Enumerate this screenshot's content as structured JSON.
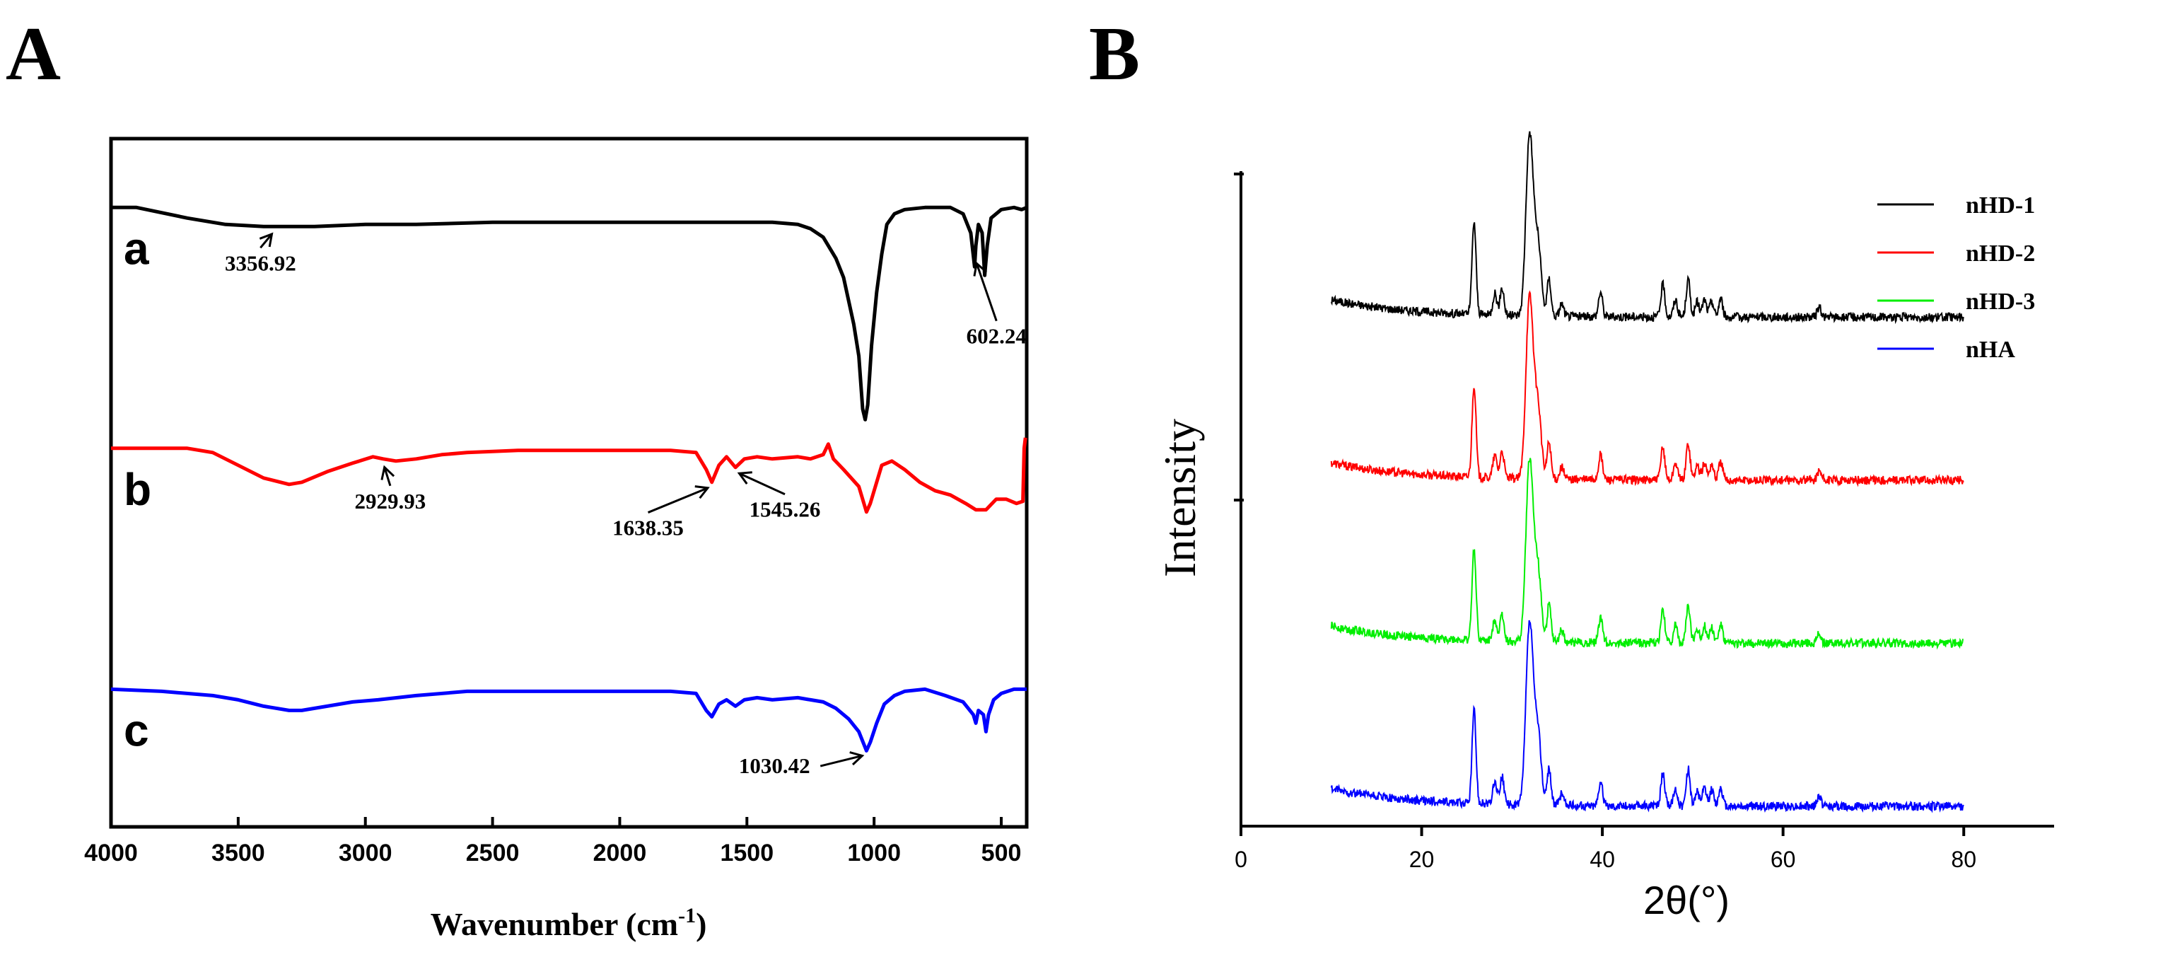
{
  "figure": {
    "panel_a_letter": "A",
    "panel_b_letter": "B"
  },
  "chart_data": [
    {
      "type": "line",
      "panel": "A",
      "title": "",
      "xlabel": "Wavenumber (cm",
      "xlabel_superscript": "-1",
      "xlabel_close": ")",
      "ylabel": "",
      "xlim": [
        4000,
        400
      ],
      "xticks": [
        4000,
        3500,
        3000,
        2500,
        2000,
        1500,
        1000,
        500
      ],
      "series": [
        {
          "name": "a",
          "color": "#000000",
          "offset": 0.9,
          "points": [
            [
              4000,
              0.0
            ],
            [
              3900,
              0.0
            ],
            [
              3700,
              -0.05
            ],
            [
              3550,
              -0.08
            ],
            [
              3400,
              -0.09
            ],
            [
              3356,
              -0.09
            ],
            [
              3200,
              -0.09
            ],
            [
              3000,
              -0.08
            ],
            [
              2800,
              -0.08
            ],
            [
              2500,
              -0.07
            ],
            [
              2200,
              -0.07
            ],
            [
              2000,
              -0.07
            ],
            [
              1800,
              -0.07
            ],
            [
              1600,
              -0.07
            ],
            [
              1400,
              -0.07
            ],
            [
              1300,
              -0.08
            ],
            [
              1250,
              -0.1
            ],
            [
              1200,
              -0.14
            ],
            [
              1150,
              -0.24
            ],
            [
              1120,
              -0.33
            ],
            [
              1100,
              -0.44
            ],
            [
              1080,
              -0.55
            ],
            [
              1060,
              -0.7
            ],
            [
              1045,
              -0.95
            ],
            [
              1035,
              -1.0
            ],
            [
              1025,
              -0.93
            ],
            [
              1010,
              -0.65
            ],
            [
              990,
              -0.4
            ],
            [
              970,
              -0.22
            ],
            [
              950,
              -0.08
            ],
            [
              920,
              -0.03
            ],
            [
              880,
              -0.01
            ],
            [
              800,
              0.0
            ],
            [
              700,
              0.0
            ],
            [
              650,
              -0.03
            ],
            [
              620,
              -0.12
            ],
            [
              605,
              -0.28
            ],
            [
              600,
              -0.18
            ],
            [
              590,
              -0.08
            ],
            [
              575,
              -0.12
            ],
            [
              565,
              -0.32
            ],
            [
              555,
              -0.18
            ],
            [
              540,
              -0.05
            ],
            [
              500,
              -0.01
            ],
            [
              450,
              0.0
            ],
            [
              420,
              -0.01
            ],
            [
              400,
              0.0
            ]
          ],
          "annotations": [
            {
              "label": "3356.92",
              "x": 3356.92
            },
            {
              "label": "602.24",
              "x": 602.24
            }
          ]
        },
        {
          "name": "b",
          "color": "#ff0000",
          "offset": 0.55,
          "points": [
            [
              4000,
              0.0
            ],
            [
              3800,
              0.0
            ],
            [
              3700,
              0.0
            ],
            [
              3600,
              -0.02
            ],
            [
              3500,
              -0.08
            ],
            [
              3400,
              -0.14
            ],
            [
              3300,
              -0.17
            ],
            [
              3250,
              -0.16
            ],
            [
              3150,
              -0.11
            ],
            [
              3050,
              -0.07
            ],
            [
              2970,
              -0.04
            ],
            [
              2930,
              -0.05
            ],
            [
              2880,
              -0.06
            ],
            [
              2800,
              -0.05
            ],
            [
              2700,
              -0.03
            ],
            [
              2600,
              -0.02
            ],
            [
              2400,
              -0.01
            ],
            [
              2200,
              -0.01
            ],
            [
              2000,
              -0.01
            ],
            [
              1800,
              -0.01
            ],
            [
              1700,
              -0.02
            ],
            [
              1660,
              -0.1
            ],
            [
              1638,
              -0.16
            ],
            [
              1610,
              -0.08
            ],
            [
              1580,
              -0.04
            ],
            [
              1545,
              -0.09
            ],
            [
              1510,
              -0.05
            ],
            [
              1460,
              -0.04
            ],
            [
              1400,
              -0.05
            ],
            [
              1300,
              -0.04
            ],
            [
              1250,
              -0.05
            ],
            [
              1200,
              -0.03
            ],
            [
              1180,
              0.02
            ],
            [
              1160,
              -0.05
            ],
            [
              1120,
              -0.1
            ],
            [
              1090,
              -0.14
            ],
            [
              1060,
              -0.18
            ],
            [
              1040,
              -0.26
            ],
            [
              1030,
              -0.3
            ],
            [
              1015,
              -0.26
            ],
            [
              995,
              -0.18
            ],
            [
              970,
              -0.08
            ],
            [
              930,
              -0.06
            ],
            [
              880,
              -0.1
            ],
            [
              820,
              -0.16
            ],
            [
              760,
              -0.2
            ],
            [
              700,
              -0.22
            ],
            [
              640,
              -0.26
            ],
            [
              600,
              -0.29
            ],
            [
              560,
              -0.29
            ],
            [
              520,
              -0.24
            ],
            [
              480,
              -0.24
            ],
            [
              440,
              -0.26
            ],
            [
              415,
              -0.25
            ],
            [
              410,
              0.0
            ],
            [
              405,
              0.05
            ]
          ],
          "annotations": [
            {
              "label": "2929.93",
              "x": 2929.93
            },
            {
              "label": "1638.35",
              "x": 1638.35
            },
            {
              "label": "1545.26",
              "x": 1545.26
            }
          ]
        },
        {
          "name": "c",
          "color": "#0000ff",
          "offset": 0.2,
          "points": [
            [
              4000,
              0.0
            ],
            [
              3800,
              -0.01
            ],
            [
              3600,
              -0.03
            ],
            [
              3500,
              -0.05
            ],
            [
              3400,
              -0.08
            ],
            [
              3300,
              -0.1
            ],
            [
              3250,
              -0.1
            ],
            [
              3150,
              -0.08
            ],
            [
              3050,
              -0.06
            ],
            [
              2950,
              -0.05
            ],
            [
              2800,
              -0.03
            ],
            [
              2600,
              -0.01
            ],
            [
              2400,
              -0.01
            ],
            [
              2200,
              -0.01
            ],
            [
              2000,
              -0.01
            ],
            [
              1800,
              -0.01
            ],
            [
              1700,
              -0.02
            ],
            [
              1660,
              -0.1
            ],
            [
              1638,
              -0.13
            ],
            [
              1610,
              -0.07
            ],
            [
              1580,
              -0.05
            ],
            [
              1545,
              -0.08
            ],
            [
              1510,
              -0.05
            ],
            [
              1460,
              -0.04
            ],
            [
              1400,
              -0.05
            ],
            [
              1300,
              -0.04
            ],
            [
              1250,
              -0.05
            ],
            [
              1200,
              -0.06
            ],
            [
              1150,
              -0.09
            ],
            [
              1100,
              -0.14
            ],
            [
              1060,
              -0.2
            ],
            [
              1040,
              -0.26
            ],
            [
              1030,
              -0.29
            ],
            [
              1015,
              -0.25
            ],
            [
              990,
              -0.16
            ],
            [
              960,
              -0.07
            ],
            [
              920,
              -0.03
            ],
            [
              880,
              -0.01
            ],
            [
              800,
              0.0
            ],
            [
              720,
              -0.03
            ],
            [
              650,
              -0.06
            ],
            [
              610,
              -0.12
            ],
            [
              600,
              -0.16
            ],
            [
              590,
              -0.1
            ],
            [
              570,
              -0.12
            ],
            [
              560,
              -0.2
            ],
            [
              550,
              -0.12
            ],
            [
              530,
              -0.05
            ],
            [
              500,
              -0.02
            ],
            [
              450,
              0.0
            ],
            [
              400,
              0.0
            ]
          ],
          "annotations": [
            {
              "label": "1030.42",
              "x": 1030.42
            }
          ]
        }
      ]
    },
    {
      "type": "line",
      "panel": "B",
      "title": "",
      "xlabel": "2θ(°)",
      "ylabel": "Intensity",
      "xlim": [
        0,
        90
      ],
      "xticks": [
        0,
        20,
        40,
        60,
        80
      ],
      "legend_position": "top-right",
      "peaks": [
        [
          25.8,
          0.75
        ],
        [
          28.1,
          0.18
        ],
        [
          28.9,
          0.22
        ],
        [
          31.8,
          1.0
        ],
        [
          32.2,
          0.72
        ],
        [
          32.9,
          0.55
        ],
        [
          34.1,
          0.3
        ],
        [
          35.5,
          0.1
        ],
        [
          39.8,
          0.2
        ],
        [
          46.7,
          0.26
        ],
        [
          48.1,
          0.14
        ],
        [
          49.5,
          0.3
        ],
        [
          50.5,
          0.12
        ],
        [
          51.3,
          0.14
        ],
        [
          52.1,
          0.13
        ],
        [
          53.1,
          0.15
        ],
        [
          64.0,
          0.08
        ]
      ],
      "series": [
        {
          "name": "nHD-1",
          "color": "#000000",
          "offset": 0.75,
          "x_range": [
            10,
            80
          ]
        },
        {
          "name": "nHD-2",
          "color": "#ff0000",
          "offset": 0.5,
          "x_range": [
            10,
            80
          ]
        },
        {
          "name": "nHD-3",
          "color": "#00ee00",
          "offset": 0.25,
          "x_range": [
            10,
            80
          ]
        },
        {
          "name": "nHA",
          "color": "#0000ff",
          "offset": 0.0,
          "x_range": [
            10,
            80
          ]
        }
      ]
    }
  ]
}
